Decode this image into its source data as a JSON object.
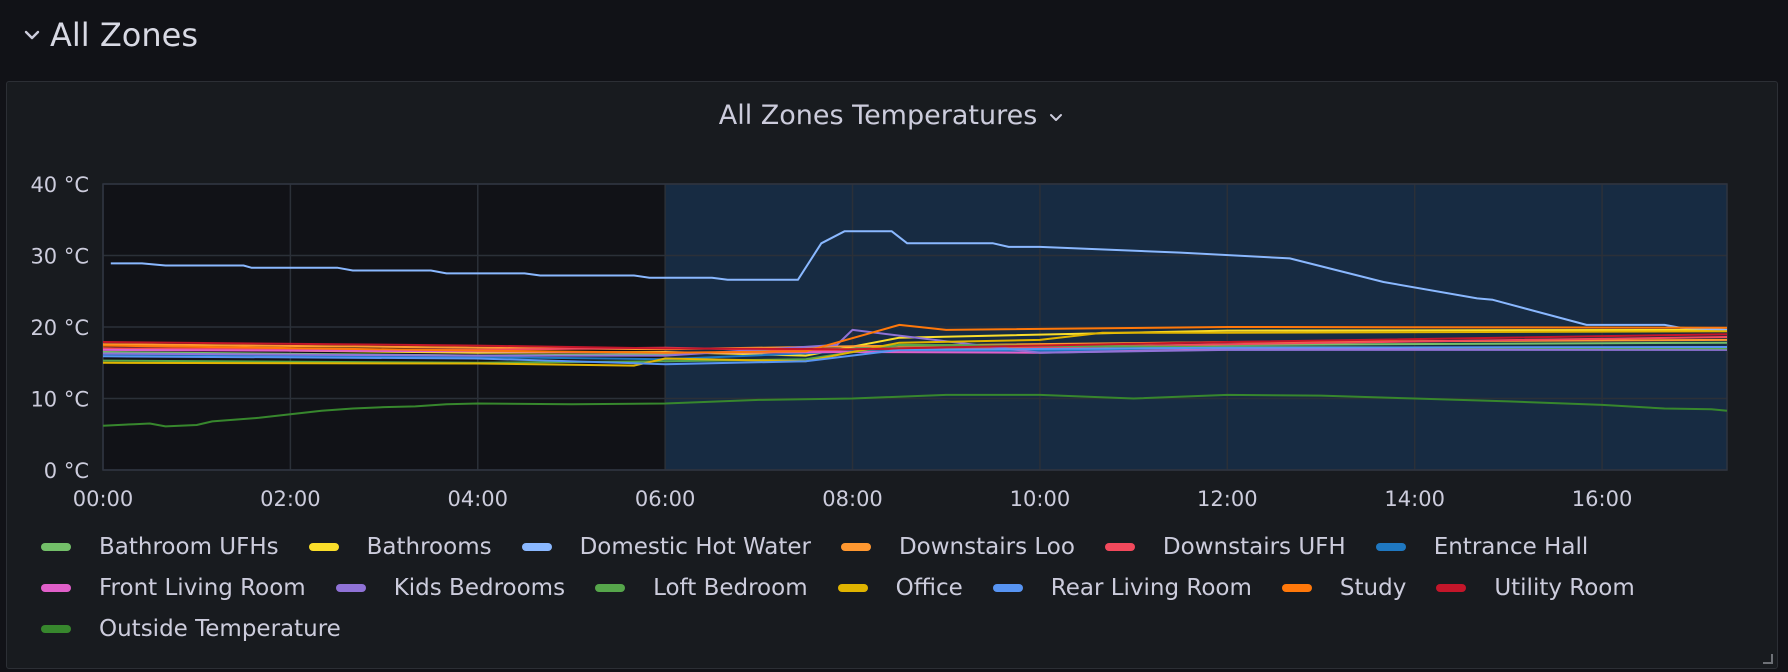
{
  "row": {
    "title": "All Zones"
  },
  "panel": {
    "title": "All Zones Temperatures"
  },
  "colors": {
    "highlight": "#172b42",
    "grid": "#2b3038",
    "text": "#ccccdc"
  },
  "chart_data": {
    "type": "line",
    "x_ticks": [
      "00:00",
      "02:00",
      "04:00",
      "06:00",
      "08:00",
      "10:00",
      "12:00",
      "14:00",
      "16:00"
    ],
    "y_ticks": [
      "0 °C",
      "10 °C",
      "20 °C",
      "30 °C",
      "40 °C"
    ],
    "xlim": [
      "00:00",
      "17:20"
    ],
    "ylim": [
      0,
      40
    ],
    "grid": true,
    "highlight_range": [
      "06:00",
      "17:20"
    ],
    "legend_position": "bottom",
    "series": [
      {
        "name": "Bathroom UFHs",
        "color": "#73bf69",
        "points": [
          [
            "00:00",
            16.5
          ],
          [
            "04:00",
            16.0
          ],
          [
            "06:00",
            16.2
          ],
          [
            "08:00",
            17.0
          ],
          [
            "12:00",
            17.5
          ],
          [
            "17:20",
            17.8
          ]
        ]
      },
      {
        "name": "Bathrooms",
        "color": "#fade2a",
        "points": [
          [
            "00:00",
            17.0
          ],
          [
            "04:00",
            16.4
          ],
          [
            "06:00",
            16.5
          ],
          [
            "07:30",
            16.0
          ],
          [
            "08:30",
            18.5
          ],
          [
            "12:00",
            19.5
          ],
          [
            "17:20",
            19.6
          ]
        ]
      },
      {
        "name": "Domestic Hot Water",
        "color": "#8ab8ff",
        "points": [
          [
            "00:05",
            28.9
          ],
          [
            "00:25",
            28.9
          ],
          [
            "00:40",
            28.6
          ],
          [
            "01:30",
            28.6
          ],
          [
            "01:35",
            28.3
          ],
          [
            "02:30",
            28.3
          ],
          [
            "02:40",
            27.9
          ],
          [
            "03:30",
            27.9
          ],
          [
            "03:40",
            27.5
          ],
          [
            "04:30",
            27.5
          ],
          [
            "04:40",
            27.2
          ],
          [
            "05:40",
            27.2
          ],
          [
            "05:50",
            26.9
          ],
          [
            "06:30",
            26.9
          ],
          [
            "06:40",
            26.6
          ],
          [
            "07:25",
            26.6
          ],
          [
            "07:40",
            31.7
          ],
          [
            "07:55",
            33.4
          ],
          [
            "08:25",
            33.4
          ],
          [
            "08:35",
            31.7
          ],
          [
            "09:30",
            31.7
          ],
          [
            "09:40",
            31.2
          ],
          [
            "10:00",
            31.2
          ],
          [
            "11:30",
            30.4
          ],
          [
            "12:40",
            29.6
          ],
          [
            "13:40",
            26.3
          ],
          [
            "14:40",
            24.0
          ],
          [
            "14:50",
            23.8
          ],
          [
            "15:50",
            20.3
          ],
          [
            "16:40",
            20.3
          ],
          [
            "16:50",
            19.9
          ],
          [
            "17:20",
            19.6
          ]
        ]
      },
      {
        "name": "Downstairs Loo",
        "color": "#ff9830",
        "points": [
          [
            "00:00",
            17.6
          ],
          [
            "04:00",
            17.1
          ],
          [
            "06:00",
            16.9
          ],
          [
            "08:00",
            17.3
          ],
          [
            "12:00",
            17.9
          ],
          [
            "17:20",
            18.2
          ]
        ]
      },
      {
        "name": "Downstairs UFH",
        "color": "#f2495c",
        "points": [
          [
            "00:00",
            17.0
          ],
          [
            "04:00",
            16.8
          ],
          [
            "06:00",
            17.1
          ],
          [
            "08:00",
            16.6
          ],
          [
            "12:00",
            17.6
          ],
          [
            "17:20",
            18.6
          ]
        ]
      },
      {
        "name": "Entrance Hall",
        "color": "#1f78c1",
        "points": [
          [
            "00:00",
            16.2
          ],
          [
            "04:00",
            15.8
          ],
          [
            "06:00",
            15.5
          ],
          [
            "08:00",
            16.6
          ],
          [
            "12:00",
            16.8
          ],
          [
            "17:20",
            17.1
          ]
        ]
      },
      {
        "name": "Front Living Room",
        "color": "#e05fc9",
        "points": [
          [
            "00:00",
            16.8
          ],
          [
            "04:00",
            16.6
          ],
          [
            "06:00",
            16.4
          ],
          [
            "08:00",
            16.5
          ],
          [
            "10:00",
            16.4
          ],
          [
            "12:00",
            16.9
          ],
          [
            "17:20",
            17.2
          ]
        ]
      },
      {
        "name": "Kids Bedrooms",
        "color": "#8f72d6",
        "points": [
          [
            "00:00",
            16.3
          ],
          [
            "04:00",
            16.0
          ],
          [
            "06:00",
            16.0
          ],
          [
            "07:50",
            17.5
          ],
          [
            "08:00",
            19.6
          ],
          [
            "10:00",
            16.4
          ],
          [
            "12:00",
            16.8
          ],
          [
            "17:20",
            16.8
          ]
        ]
      },
      {
        "name": "Loft Bedroom",
        "color": "#56a64b",
        "points": [
          [
            "00:00",
            15.3
          ],
          [
            "04:00",
            15.0
          ],
          [
            "06:00",
            15.2
          ],
          [
            "07:30",
            15.5
          ],
          [
            "08:30",
            17.5
          ],
          [
            "12:00",
            17.2
          ],
          [
            "17:20",
            17.0
          ]
        ]
      },
      {
        "name": "Office",
        "color": "#e0b400",
        "points": [
          [
            "00:00",
            15.0
          ],
          [
            "04:00",
            14.9
          ],
          [
            "05:40",
            14.6
          ],
          [
            "06:00",
            15.6
          ],
          [
            "07:30",
            15.2
          ],
          [
            "08:30",
            17.8
          ],
          [
            "10:00",
            18.2
          ],
          [
            "10:40",
            19.2
          ],
          [
            "12:00",
            19.2
          ],
          [
            "17:20",
            19.4
          ]
        ]
      },
      {
        "name": "Rear Living Room",
        "color": "#5794f2",
        "points": [
          [
            "00:00",
            15.9
          ],
          [
            "04:00",
            15.6
          ],
          [
            "06:00",
            14.8
          ],
          [
            "07:30",
            15.2
          ],
          [
            "08:30",
            16.8
          ],
          [
            "12:00",
            17.1
          ],
          [
            "17:20",
            17.2
          ]
        ]
      },
      {
        "name": "Study",
        "color": "#ff780a",
        "points": [
          [
            "00:00",
            17.4
          ],
          [
            "04:00",
            16.7
          ],
          [
            "06:00",
            16.4
          ],
          [
            "07:30",
            16.6
          ],
          [
            "08:30",
            20.3
          ],
          [
            "09:00",
            19.6
          ],
          [
            "12:00",
            20.0
          ],
          [
            "17:20",
            19.9
          ]
        ]
      },
      {
        "name": "Utility Room",
        "color": "#c4162a",
        "points": [
          [
            "00:00",
            17.9
          ],
          [
            "04:00",
            17.4
          ],
          [
            "06:00",
            17.0
          ],
          [
            "08:00",
            16.9
          ],
          [
            "12:00",
            17.9
          ],
          [
            "17:20",
            19.0
          ]
        ]
      },
      {
        "name": "Outside Temperature",
        "color": "#37872d",
        "points": [
          [
            "00:00",
            6.2
          ],
          [
            "00:20",
            6.4
          ],
          [
            "00:30",
            6.5
          ],
          [
            "00:40",
            6.1
          ],
          [
            "01:00",
            6.3
          ],
          [
            "01:10",
            6.8
          ],
          [
            "01:40",
            7.3
          ],
          [
            "02:00",
            7.8
          ],
          [
            "02:20",
            8.3
          ],
          [
            "02:40",
            8.6
          ],
          [
            "03:00",
            8.8
          ],
          [
            "03:20",
            8.9
          ],
          [
            "03:40",
            9.2
          ],
          [
            "04:00",
            9.3
          ],
          [
            "05:00",
            9.2
          ],
          [
            "06:00",
            9.3
          ],
          [
            "07:00",
            9.8
          ],
          [
            "08:00",
            10.0
          ],
          [
            "09:00",
            10.5
          ],
          [
            "10:00",
            10.5
          ],
          [
            "11:00",
            10.0
          ],
          [
            "12:00",
            10.5
          ],
          [
            "13:00",
            10.4
          ],
          [
            "14:00",
            10.0
          ],
          [
            "15:00",
            9.6
          ],
          [
            "16:00",
            9.1
          ],
          [
            "16:40",
            8.6
          ],
          [
            "17:10",
            8.5
          ],
          [
            "17:20",
            8.3
          ]
        ]
      }
    ]
  }
}
